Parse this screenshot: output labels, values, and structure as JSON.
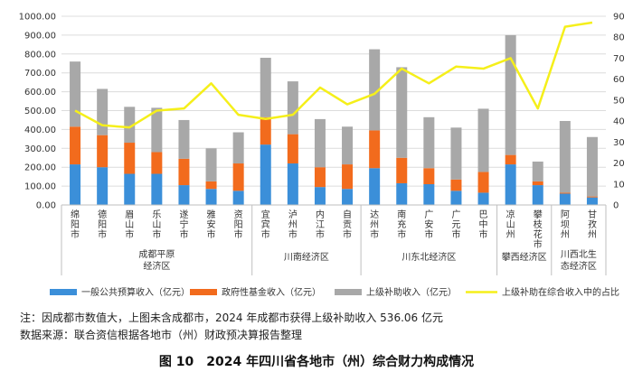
{
  "chart_data": {
    "type": "bar",
    "stacked": true,
    "title": "",
    "categories": [
      "绵阳市",
      "德阳市",
      "眉山市",
      "乐山市",
      "遂宁市",
      "雅安市",
      "资阳市",
      "宜宾市",
      "泸州市",
      "内江市",
      "自贡市",
      "达州市",
      "南充市",
      "广安市",
      "广元市",
      "巴中市",
      "凉山州",
      "攀枝花市",
      "阿坝州",
      "甘孜州"
    ],
    "groups": [
      {
        "label": "成都平原经济区",
        "start": 0,
        "end": 6
      },
      {
        "label": "川南经济区",
        "start": 7,
        "end": 10
      },
      {
        "label": "川东北经济区",
        "start": 11,
        "end": 15
      },
      {
        "label": "攀西经济区",
        "start": 16,
        "end": 17
      },
      {
        "label": "川西北生态经济区",
        "start": 18,
        "end": 19
      }
    ],
    "series": [
      {
        "name": "一般公共预算收入（亿元）",
        "kind": "bar",
        "color": "#3b8fd9",
        "values": [
          215,
          200,
          165,
          165,
          105,
          85,
          75,
          320,
          220,
          95,
          85,
          195,
          115,
          110,
          75,
          65,
          215,
          105,
          60,
          40
        ]
      },
      {
        "name": "政府性基金收入（亿元）",
        "kind": "bar",
        "color": "#f26b1d",
        "values": [
          200,
          170,
          165,
          115,
          140,
          40,
          145,
          145,
          155,
          105,
          130,
          200,
          135,
          85,
          60,
          110,
          50,
          20,
          5,
          5
        ]
      },
      {
        "name": "上级补助收入（亿元）",
        "kind": "bar",
        "color": "#a8a8a8",
        "values": [
          345,
          245,
          190,
          235,
          205,
          175,
          165,
          315,
          280,
          255,
          200,
          430,
          480,
          270,
          275,
          335,
          635,
          105,
          380,
          315
        ]
      },
      {
        "name": "上级补助在综合收入中的占比",
        "kind": "line",
        "color": "#f5ef1a",
        "axis": "right",
        "values": [
          45,
          38,
          37,
          45,
          46,
          58,
          43,
          41,
          43,
          56,
          48,
          53,
          65,
          58,
          66,
          65,
          70,
          46,
          85,
          87
        ]
      }
    ],
    "left_axis": {
      "min": 0,
      "max": 1000,
      "step": 100,
      "ticks": [
        "0.00",
        "100.00",
        "200.00",
        "300.00",
        "400.00",
        "500.00",
        "600.00",
        "700.00",
        "800.00",
        "900.00",
        "1000.00"
      ]
    },
    "right_axis": {
      "min": 0,
      "max": 90,
      "step": 10,
      "ticks": [
        "0",
        "10",
        "20",
        "30",
        "40",
        "50",
        "60",
        "70",
        "80",
        "90"
      ]
    },
    "legend_position": "bottom"
  },
  "notes": {
    "line1": "注：因成都市数值大，上图未含成都市，2024 年成都市获得上级补助收入 536.06 亿元",
    "line2": "数据来源：联合资信根据各地市（州）财政预决算报告整理"
  },
  "caption": "图 10　2024 年四川省各地市（州）综合财力构成情况"
}
